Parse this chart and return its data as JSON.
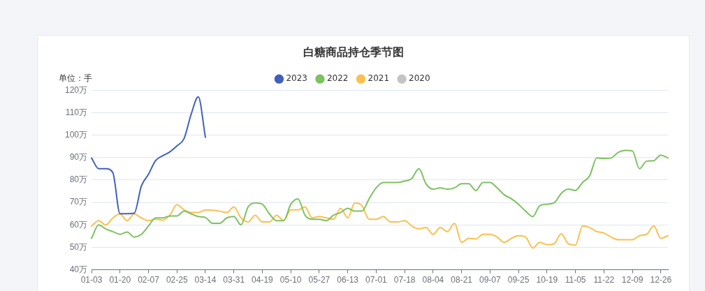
{
  "chart_data": {
    "type": "line",
    "title": "白糖商品持仓季节图",
    "ylabel": "单位：手",
    "categories": [
      "01-03",
      null,
      null,
      null,
      "01-20",
      null,
      null,
      null,
      "02-07",
      null,
      null,
      null,
      "02-25",
      null,
      null,
      null,
      "03-14",
      null,
      null,
      null,
      "03-31",
      null,
      null,
      null,
      "04-19",
      null,
      null,
      null,
      "05-10",
      null,
      null,
      null,
      "05-27",
      null,
      null,
      null,
      "06-13",
      null,
      null,
      null,
      "07-01",
      null,
      null,
      null,
      "07-18",
      null,
      null,
      null,
      "08-04",
      null,
      null,
      null,
      "08-21",
      null,
      null,
      null,
      "09-07",
      null,
      null,
      null,
      "09-25",
      null,
      null,
      null,
      "10-19",
      null,
      null,
      null,
      "11-05",
      null,
      null,
      null,
      "11-22",
      null,
      null,
      null,
      "12-09",
      null,
      null,
      null,
      "12-26",
      null
    ],
    "series": [
      {
        "name": "2023",
        "color": "#4060bf",
        "values": [
          89.8,
          85,
          85,
          83.2,
          65,
          65,
          65.2,
          77.3,
          82.5,
          88.6,
          90.8,
          92.5,
          95.2,
          98.4,
          109.3,
          117,
          99,
          null,
          null,
          null,
          null,
          null,
          null,
          null,
          null,
          null,
          null,
          null,
          null,
          null,
          null,
          null,
          null,
          null,
          null,
          null,
          null,
          null,
          null,
          null,
          null,
          null,
          null,
          null,
          null,
          null,
          null,
          null,
          null,
          null,
          null,
          null,
          null,
          null,
          null,
          null,
          null,
          null,
          null,
          null,
          null,
          null,
          null,
          null,
          null,
          null,
          null,
          null,
          null,
          null,
          null,
          null,
          null,
          null,
          null,
          null,
          null,
          null,
          null,
          null,
          null,
          null
        ]
      },
      {
        "name": "2022",
        "color": "#7cc260",
        "values": [
          54,
          60,
          58.2,
          57,
          55.8,
          56.8,
          54.6,
          55.8,
          59.5,
          63.1,
          63.1,
          64,
          64,
          66.1,
          64.9,
          63.7,
          63.3,
          60.7,
          60.7,
          63.1,
          63.7,
          60,
          68,
          69.8,
          69.2,
          64.9,
          61.9,
          61.9,
          69.2,
          71.6,
          64.3,
          62.5,
          62.5,
          61.9,
          64.3,
          65.5,
          67.4,
          66.1,
          66.1,
          71.6,
          76.5,
          78.9,
          78.9,
          78.9,
          79.5,
          80.7,
          85,
          78.3,
          75.9,
          76.5,
          75.9,
          76.5,
          78.3,
          78.3,
          75.3,
          78.9,
          78.9,
          76.5,
          73.4,
          71.6,
          69.2,
          66.1,
          63.7,
          68.6,
          69.2,
          69.8,
          74,
          75.9,
          75.3,
          78.9,
          81.9,
          89.8,
          89.6,
          89.8,
          92.3,
          93.2,
          92.9,
          85,
          88.4,
          88.6,
          91.1,
          89.8
        ]
      },
      {
        "name": "2021",
        "color": "#fbc04d",
        "values": [
          59.5,
          61.9,
          60,
          63.1,
          64.9,
          61.9,
          64.9,
          63.1,
          61.9,
          62.5,
          62.1,
          64.3,
          69,
          66.7,
          65.5,
          65.5,
          66.7,
          66.5,
          66.1,
          65.5,
          68,
          63.1,
          61.3,
          64.3,
          61.3,
          61.3,
          64.3,
          61.9,
          66.7,
          66.7,
          68,
          63.1,
          63.7,
          63.1,
          62.5,
          67.4,
          63.1,
          69.8,
          68.6,
          62.5,
          62.5,
          63.7,
          61.3,
          61.3,
          61.9,
          59.5,
          58.2,
          58.8,
          55.8,
          58.8,
          57,
          60.7,
          52.2,
          54,
          53.7,
          55.8,
          55.8,
          54.6,
          52.2,
          54,
          55.2,
          54.6,
          49.7,
          52.2,
          51.2,
          51.6,
          56,
          51.6,
          51,
          59.5,
          58.8,
          57,
          56.4,
          54.6,
          53.4,
          53.4,
          53.4,
          55.2,
          55.8,
          59.5,
          54,
          55.2
        ]
      },
      {
        "name": "2020",
        "color": "#c4c4c4",
        "values": [
          null,
          null,
          null,
          null,
          null,
          null,
          null,
          null,
          null,
          null,
          null,
          null,
          null,
          null,
          null,
          null,
          null,
          null,
          null,
          null,
          null,
          null,
          null,
          null,
          null,
          null,
          null,
          null,
          null,
          null,
          null,
          null,
          null,
          null,
          null,
          null,
          null,
          null,
          null,
          null,
          null,
          null,
          null,
          null,
          null,
          null,
          null,
          null,
          null,
          null,
          null,
          null,
          null,
          null,
          null,
          null,
          null,
          null,
          null,
          null,
          null,
          null,
          null,
          null,
          null,
          null,
          null,
          null,
          null,
          null,
          null,
          null,
          null,
          null,
          null,
          null,
          null,
          null,
          null,
          null,
          null,
          null
        ]
      }
    ],
    "ylim": [
      40,
      120
    ],
    "yticks": [
      {
        "value": 40,
        "label": "40万"
      },
      {
        "value": 50,
        "label": "50万"
      },
      {
        "value": 60,
        "label": "60万"
      },
      {
        "value": 70,
        "label": "70万"
      },
      {
        "value": 80,
        "label": "80万"
      },
      {
        "value": 90,
        "label": "90万"
      },
      {
        "value": 100,
        "label": "100万"
      },
      {
        "value": 110,
        "label": "110万"
      },
      {
        "value": 120,
        "label": "120万"
      }
    ],
    "grid": "y",
    "legend": "top",
    "marker": "none",
    "line_style": "solid"
  }
}
